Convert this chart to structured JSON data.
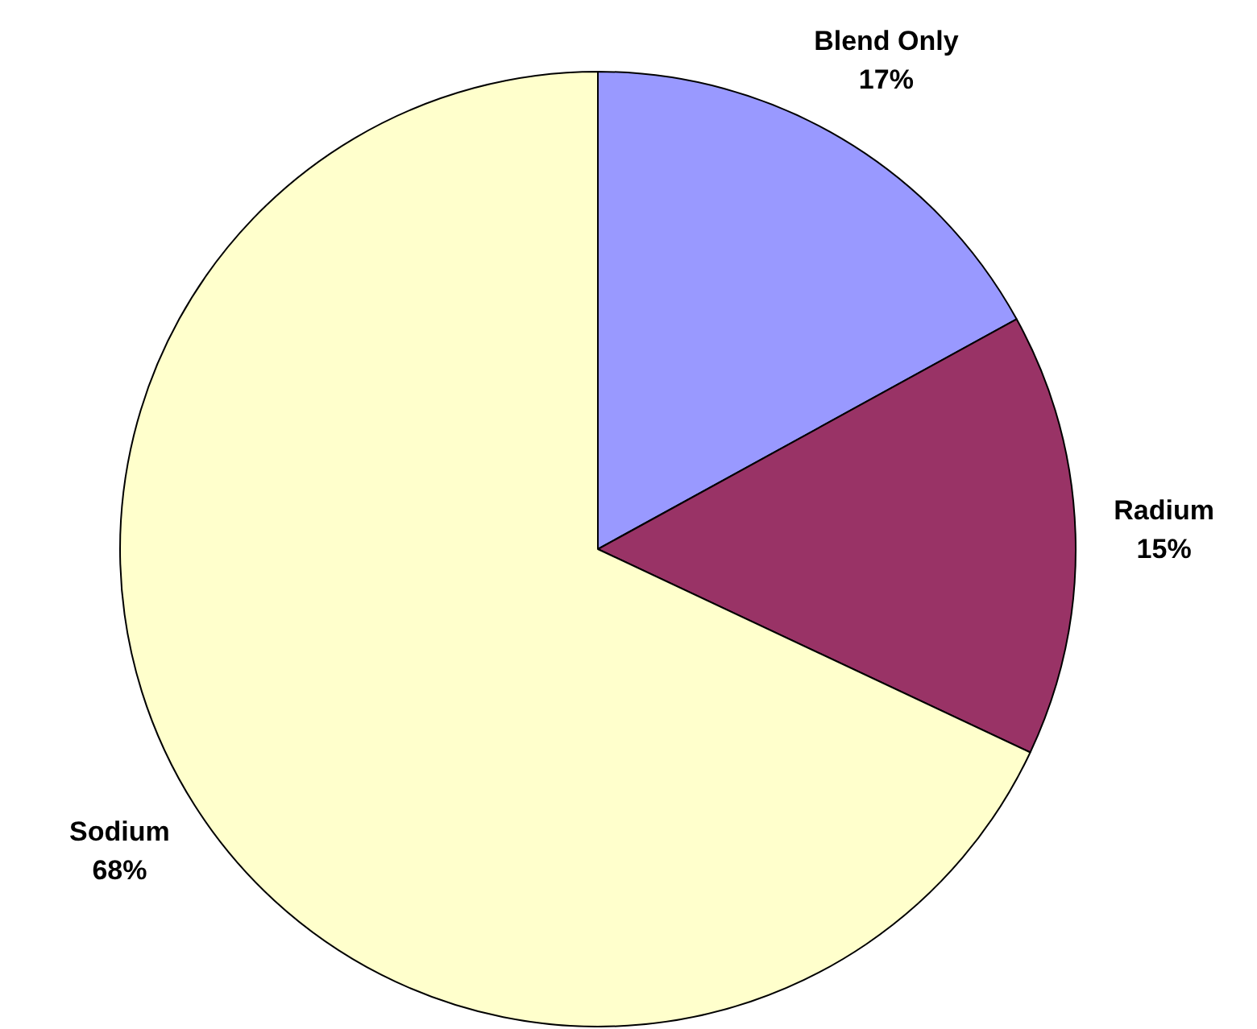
{
  "chart_data": {
    "type": "pie",
    "categories": [
      "Blend Only",
      "Radium",
      "Sodium"
    ],
    "values": [
      17,
      15,
      68
    ],
    "colors": [
      "#9999ff",
      "#993366",
      "#ffffcc"
    ],
    "value_labels": [
      "17%",
      "15%",
      "68%"
    ],
    "legend": false
  }
}
